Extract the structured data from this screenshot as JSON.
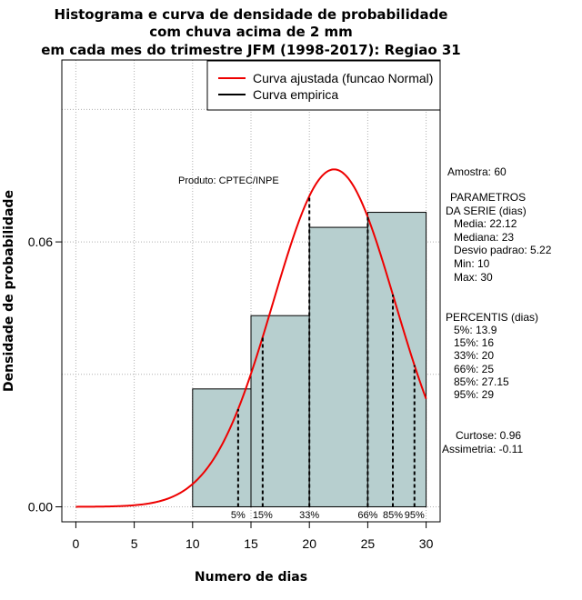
{
  "chart_data": {
    "type": "bar",
    "title_lines": [
      "Histograma e curva de densidade de probabilidade",
      "com chuva acima de 2 mm",
      "em cada mes do trimestre JFM (1998-2017): Regiao 31"
    ],
    "xlabel": "Numero de dias",
    "ylabel": "Densidade de probabilidade",
    "xlim": [
      -1.2,
      31.2
    ],
    "ylim": [
      -0.0034,
      0.1012
    ],
    "x_ticks": [
      "0",
      "5",
      "10",
      "15",
      "20",
      "25",
      "30"
    ],
    "y_ticks": [
      "0.00",
      "0.06"
    ],
    "grid": true,
    "legend_position": "top-right",
    "legend": [
      {
        "label": "Curva ajustada (funcao Normal)",
        "color": "#ee0000"
      },
      {
        "label": "Curva empirica",
        "color": "#000000"
      }
    ],
    "histogram": {
      "bins": [
        {
          "from": 10,
          "to": 15,
          "density": 0.0267
        },
        {
          "from": 15,
          "to": 20,
          "density": 0.0433
        },
        {
          "from": 20,
          "to": 25,
          "density": 0.0633
        },
        {
          "from": 25,
          "to": 30,
          "density": 0.0667
        }
      ],
      "fill": "#b7cfcf"
    },
    "normal_fit": {
      "mean": 22.12,
      "sd": 5.22,
      "x_from": 0,
      "x_to": 30,
      "color": "#ee0000"
    },
    "percentile_markers": [
      {
        "label": "5%",
        "x": 13.9
      },
      {
        "label": "15%",
        "x": 16
      },
      {
        "label": "33%",
        "x": 20
      },
      {
        "label": "66%",
        "x": 25
      },
      {
        "label": "85%",
        "x": 27.15
      },
      {
        "label": "95%",
        "x": 29
      }
    ],
    "annotations": {
      "produto": "Produto: CPTEC/INPE",
      "amostra": "Amostra: 60",
      "parametros": [
        "PARAMETROS",
        "DA SERIE (dias)",
        "Media: 22.12",
        "Mediana: 23",
        "Desvio padrao: 5.22",
        "Min: 10",
        "Max: 30"
      ],
      "percentis": [
        "PERCENTIS (dias)",
        "5%: 13.9",
        "15%: 16",
        "33%: 20",
        "66%: 25",
        "85%: 27.15",
        "95%: 29"
      ],
      "curtose": "Curtose: 0.96",
      "assimetria": "Assimetria: -0.11"
    }
  }
}
